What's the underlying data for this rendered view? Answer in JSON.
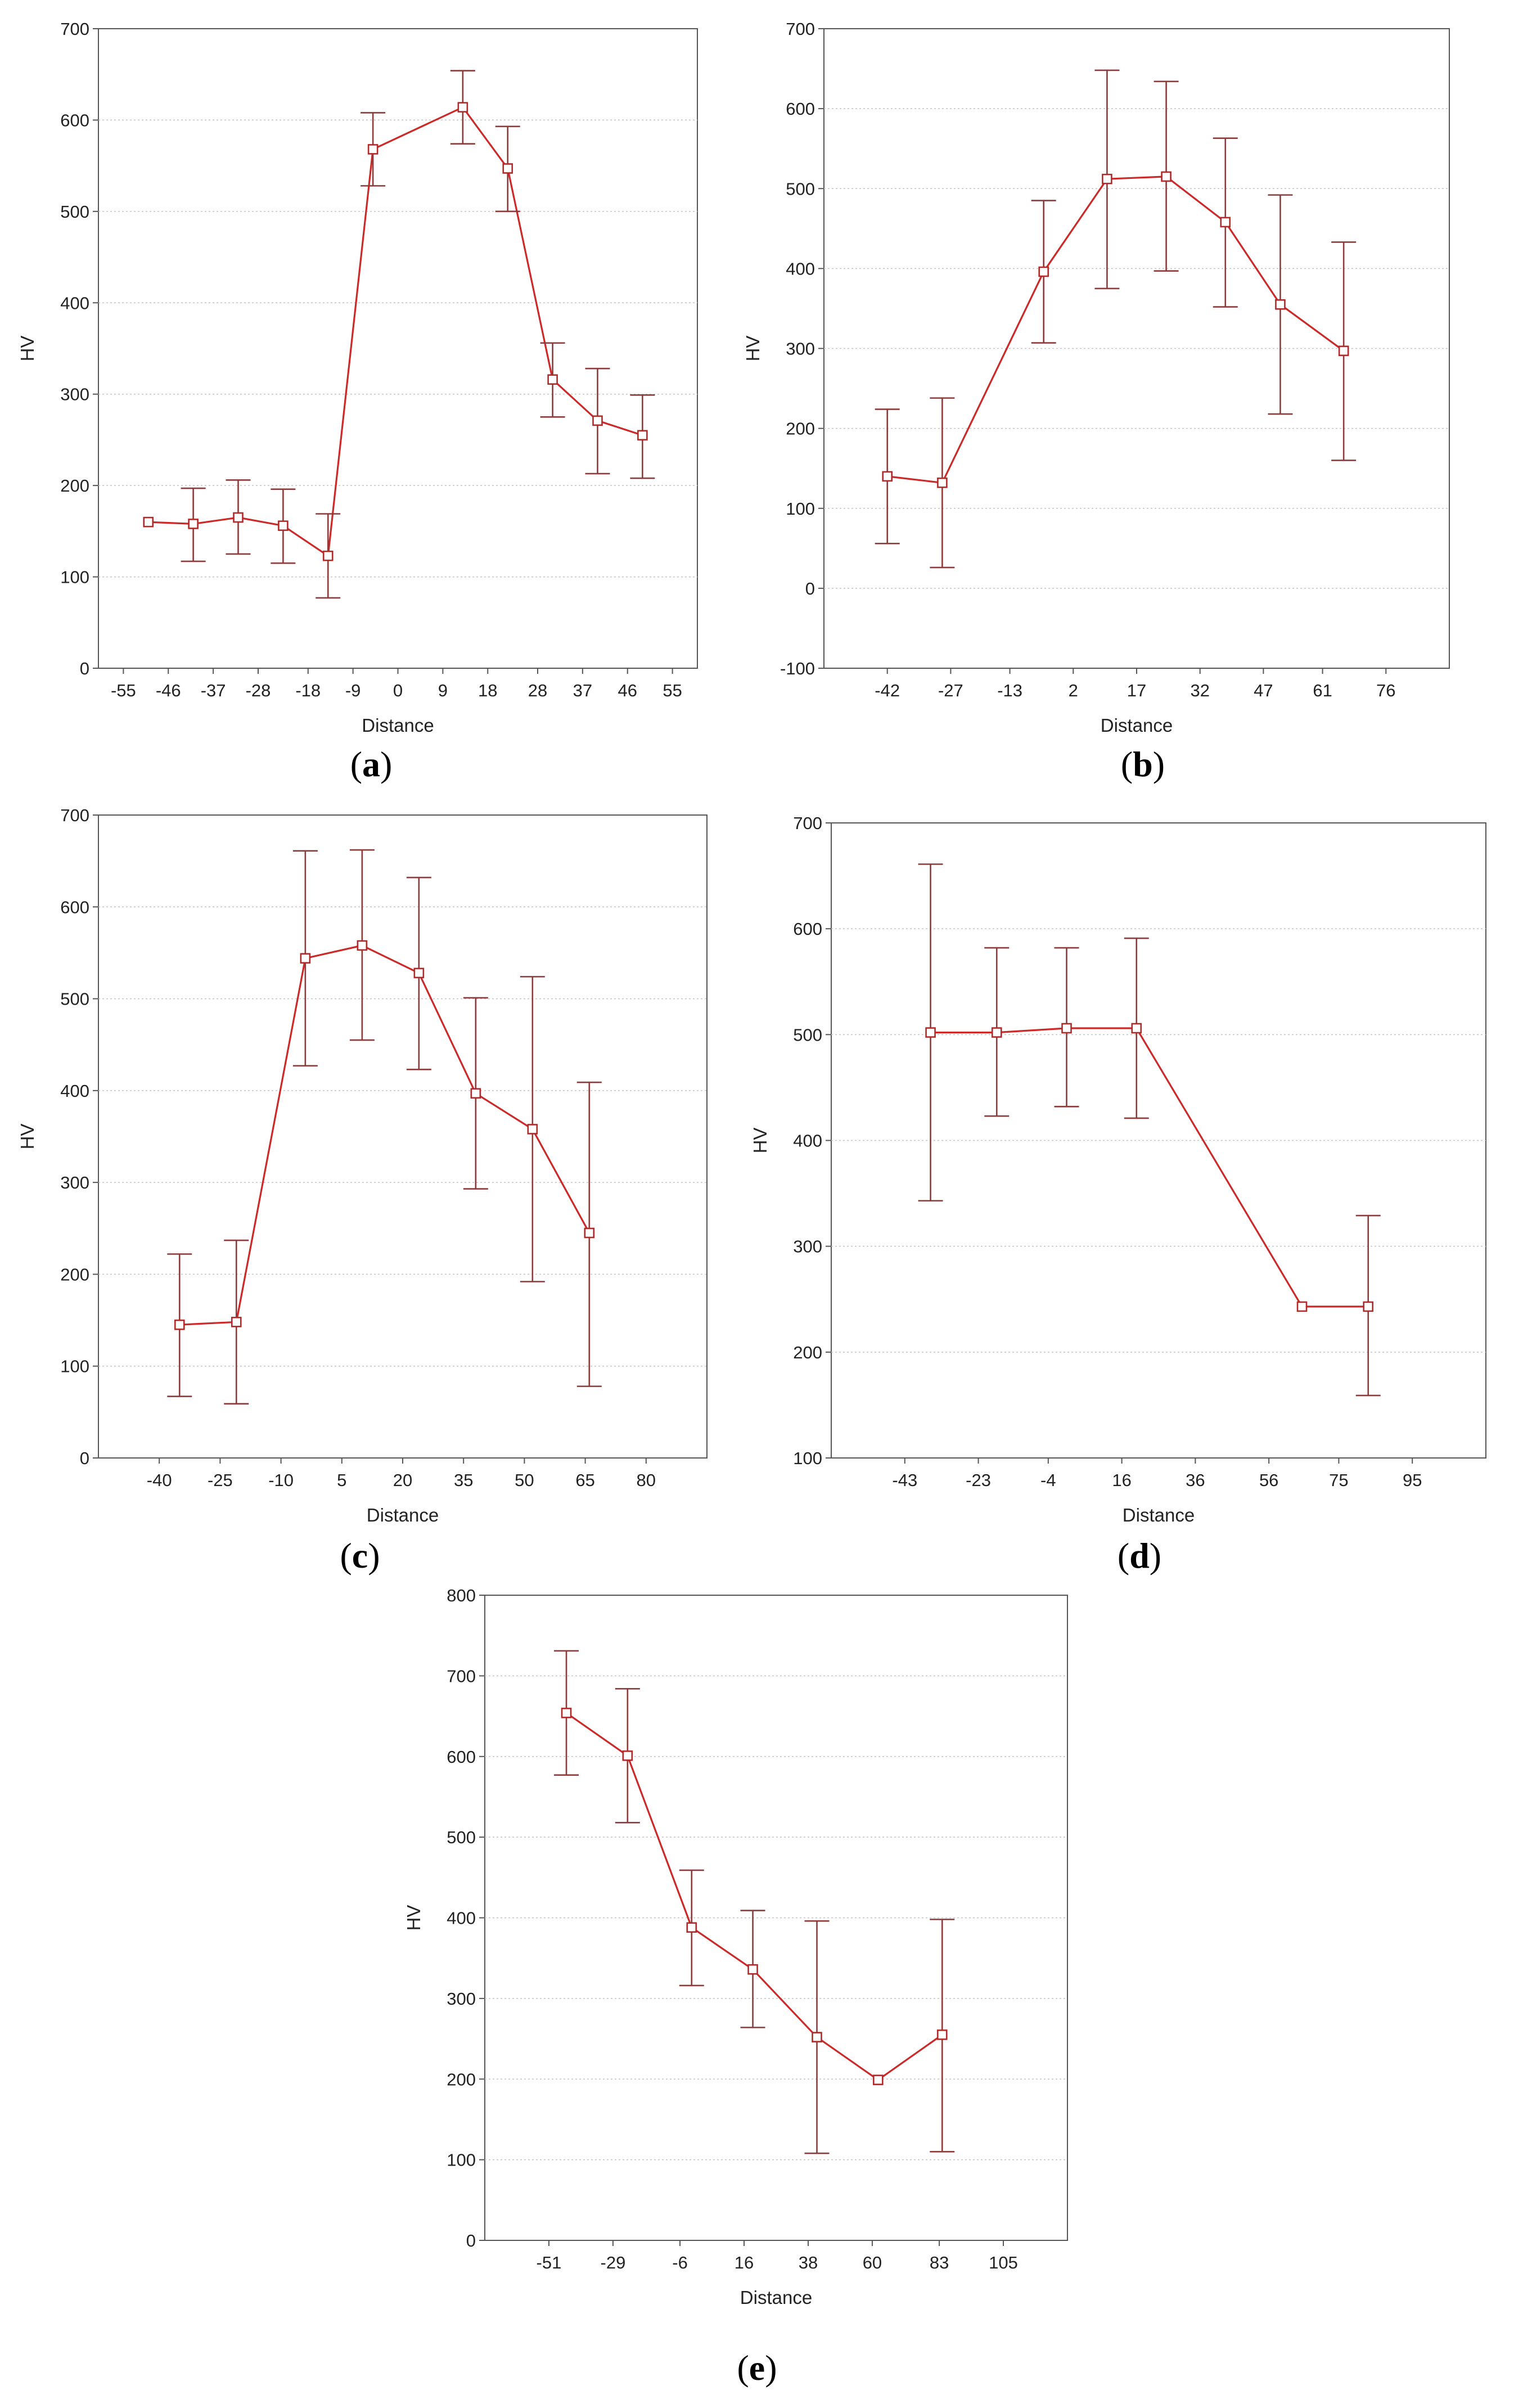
{
  "chart_data": [
    {
      "id": "a",
      "type": "line",
      "caption_letter": "a",
      "xlabel": "Distance",
      "ylabel": "HV",
      "ylim": [
        0,
        700
      ],
      "yticks": [
        0,
        100,
        200,
        300,
        400,
        500,
        600,
        700
      ],
      "xlim": [
        -60,
        60
      ],
      "xticks": [
        -55,
        -46,
        -37,
        -28,
        -18,
        -9,
        0,
        9,
        18,
        28,
        37,
        46,
        55
      ],
      "grid": true,
      "series": [
        {
          "name": "HV",
          "x": [
            -50,
            -41,
            -32,
            -23,
            -14,
            -5,
            13,
            22,
            31,
            40,
            49
          ],
          "y": [
            160,
            158,
            165,
            156,
            123,
            568,
            614,
            547,
            316,
            271,
            255
          ],
          "err_low": [
            160,
            117,
            125,
            115,
            77,
            528,
            574,
            500,
            275,
            213,
            208
          ],
          "err_high": [
            160,
            197,
            206,
            196,
            169,
            608,
            654,
            593,
            356,
            328,
            299
          ]
        }
      ]
    },
    {
      "id": "b",
      "type": "line",
      "caption_letter": "b",
      "xlabel": "Distance",
      "ylabel": "HV",
      "ylim": [
        -100,
        700
      ],
      "yticks": [
        -100,
        0,
        100,
        200,
        300,
        400,
        500,
        600,
        700
      ],
      "xlim": [
        -57,
        91
      ],
      "xticks": [
        -42,
        -27,
        -13,
        2,
        17,
        32,
        47,
        61,
        76
      ],
      "grid": true,
      "series": [
        {
          "name": "HV",
          "x": [
            -42,
            -29,
            -5,
            10,
            24,
            38,
            51,
            66
          ],
          "y": [
            140,
            132,
            396,
            512,
            515,
            458,
            355,
            297
          ],
          "err_low": [
            56,
            26,
            307,
            375,
            397,
            352,
            218,
            160
          ],
          "err_high": [
            224,
            238,
            485,
            648,
            634,
            563,
            492,
            433
          ]
        }
      ]
    },
    {
      "id": "c",
      "type": "line",
      "caption_letter": "c",
      "xlabel": "Distance",
      "ylabel": "HV",
      "ylim": [
        0,
        700
      ],
      "yticks": [
        0,
        100,
        200,
        300,
        400,
        500,
        600,
        700
      ],
      "xlim": [
        -55,
        95
      ],
      "xticks": [
        -40,
        -25,
        -10,
        5,
        20,
        35,
        50,
        65,
        80
      ],
      "grid": true,
      "series": [
        {
          "name": "HV",
          "x": [
            -35,
            -21,
            -4,
            10,
            24,
            38,
            52,
            66
          ],
          "y": [
            145,
            148,
            544,
            558,
            528,
            397,
            358,
            245
          ],
          "err_low": [
            67,
            59,
            427,
            455,
            423,
            293,
            192,
            78
          ],
          "err_high": [
            222,
            237,
            661,
            662,
            632,
            501,
            524,
            409
          ]
        }
      ]
    },
    {
      "id": "d",
      "type": "line",
      "caption_letter": "d",
      "xlabel": "Distance",
      "ylabel": "HV",
      "ylim": [
        100,
        700
      ],
      "yticks": [
        100,
        200,
        300,
        400,
        500,
        600,
        700
      ],
      "xlim": [
        -63,
        115
      ],
      "xticks": [
        -43,
        -23,
        -4,
        16,
        36,
        56,
        75,
        95
      ],
      "grid": true,
      "series": [
        {
          "name": "HV",
          "x": [
            -36,
            -18,
            1,
            20,
            65,
            83
          ],
          "y": [
            502,
            502,
            506,
            506,
            243,
            243
          ],
          "err_low": [
            343,
            423,
            432,
            421,
            243,
            159
          ],
          "err_high": [
            661,
            582,
            582,
            591,
            243,
            329
          ]
        }
      ]
    },
    {
      "id": "e",
      "type": "line",
      "caption_letter": "e",
      "xlabel": "Distance",
      "ylabel": "HV",
      "ylim": [
        0,
        800
      ],
      "yticks": [
        0,
        100,
        200,
        300,
        400,
        500,
        600,
        700,
        800
      ],
      "xlim": [
        -73,
        127
      ],
      "xticks": [
        -51,
        -29,
        -6,
        16,
        38,
        60,
        83,
        105
      ],
      "grid": true,
      "series": [
        {
          "name": "HV",
          "x": [
            -45,
            -24,
            -2,
            19,
            41,
            62,
            84
          ],
          "y": [
            654,
            601,
            388,
            336,
            252,
            199,
            255
          ],
          "err_low": [
            577,
            518,
            316,
            264,
            108,
            199,
            110
          ],
          "err_high": [
            731,
            684,
            459,
            409,
            396,
            199,
            398
          ]
        }
      ]
    }
  ],
  "caption_parens": [
    "(",
    ")"
  ]
}
